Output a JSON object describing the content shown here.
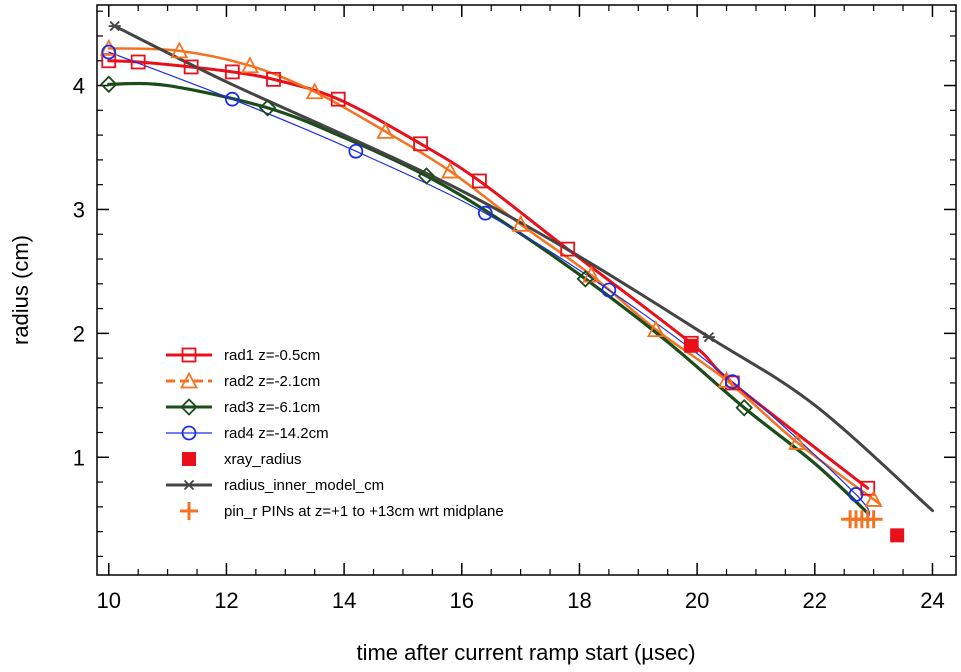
{
  "chart_data": {
    "type": "line",
    "xlabel": "time after current ramp start (µsec)",
    "ylabel": "radius (cm)",
    "xlim": [
      9.8,
      24.4
    ],
    "ylim": [
      0.05,
      4.65
    ],
    "x_ticks": [
      10,
      12,
      14,
      16,
      18,
      20,
      22,
      24
    ],
    "y_ticks": [
      1,
      2,
      3,
      4
    ],
    "x_tick_labels": [
      "10",
      "12",
      "14",
      "16",
      "18",
      "20",
      "22",
      "24"
    ],
    "y_tick_labels": [
      "1",
      "2",
      "3",
      "4"
    ],
    "grid": false,
    "legend_position": "lower-left",
    "series": [
      {
        "name": "rad1 z=-0.5cm",
        "color": "#e8101a",
        "marker": "square-open",
        "line": "solid",
        "x": [
          10.0,
          10.5,
          11.4,
          12.1,
          12.8,
          13.9,
          15.3,
          16.3,
          17.8,
          19.9,
          20.6,
          22.9
        ],
        "y": [
          4.2,
          4.19,
          4.15,
          4.11,
          4.05,
          3.89,
          3.53,
          3.23,
          2.68,
          1.92,
          1.6,
          0.75
        ]
      },
      {
        "name": "rad2 z=-2.1cm",
        "color": "#f47321",
        "marker": "triangle-open",
        "line": "dashed",
        "x": [
          10.0,
          11.2,
          12.4,
          13.5,
          14.7,
          15.8,
          17.0,
          18.2,
          19.3,
          20.5,
          21.7,
          23.0
        ],
        "y": [
          4.3,
          4.28,
          4.16,
          3.95,
          3.63,
          3.31,
          2.88,
          2.47,
          2.03,
          1.62,
          1.12,
          0.66
        ]
      },
      {
        "name": "rad3 z=-6.1cm",
        "color": "#1a4d1a",
        "marker": "diamond-open",
        "line": "solid",
        "x": [
          10.0,
          12.7,
          15.4,
          18.1,
          20.8
        ],
        "y": [
          4.01,
          3.82,
          3.27,
          2.44,
          1.4
        ]
      },
      {
        "name": "rad4 z=-14.2cm",
        "color": "#1a2ee8",
        "marker": "circle-open",
        "line": "solid",
        "x": [
          10.0,
          12.1,
          14.2,
          16.4,
          18.5,
          20.6,
          22.7
        ],
        "y": [
          4.27,
          3.89,
          3.47,
          2.97,
          2.35,
          1.61,
          0.7
        ]
      },
      {
        "name": "xray_radius",
        "color": "#e8101a",
        "marker": "square-filled",
        "line": "none",
        "x": [
          19.9,
          23.4
        ],
        "y": [
          1.9,
          0.37
        ]
      },
      {
        "name": "radius_inner_model_cm",
        "color": "#444444",
        "marker": "asterisk",
        "line": "solid",
        "x": [
          10.1,
          20.2
        ],
        "y": [
          4.48,
          1.97
        ]
      },
      {
        "name": "pin_r PINs at z=+1 to +13cm wrt midplane",
        "color": "#f47321",
        "marker": "plus",
        "line": "none",
        "x": [
          22.6,
          22.7,
          22.8,
          22.9,
          23.0
        ],
        "y": [
          0.5,
          0.5,
          0.5,
          0.5,
          0.5
        ]
      }
    ]
  }
}
